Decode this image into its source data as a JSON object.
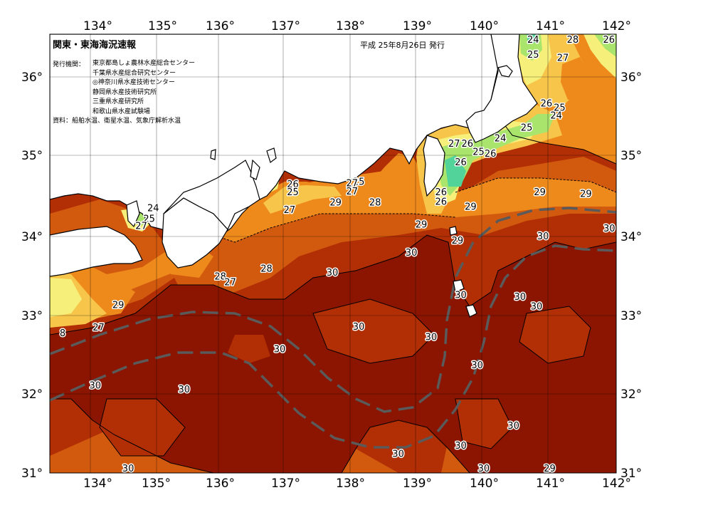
{
  "header": {
    "title": "関東・東海海況速報",
    "issue": "平成 25年8月26日 発行",
    "agency_label": "発行機関：",
    "agencies": [
      "東京都島しょ農林水産総合センター",
      "千葉県水産総合研究センター",
      "◎神奈川県水産技術センター",
      "静岡県水産技術研究所",
      "三重県水産研究所",
      "和歌山県水産試験場"
    ],
    "source": "資料：船舶水温、衛星水温、気象庁解析水温"
  },
  "map": {
    "lon_ticks": [
      "134°",
      "135°",
      "136°",
      "137°",
      "138°",
      "139°",
      "140°",
      "141°",
      "142°"
    ],
    "lat_ticks": [
      "36°",
      "35°",
      "34°",
      "33°",
      "32°",
      "31°"
    ],
    "lon_range": [
      133.5,
      142
    ],
    "lat_range": [
      31,
      36.5
    ],
    "colors": {
      "t30": "#8b1500",
      "t29": "#b22e05",
      "t28": "#d25a0f",
      "t27": "#ee8a1c",
      "t26": "#f7c54a",
      "t25": "#f6ef7a",
      "t24": "#a9e46c",
      "t23": "#52d39a",
      "land": "#ffffff",
      "kuroshio": "#5a5a5a"
    },
    "isotherm_labels": [
      {
        "text": "28",
        "lon": 141.25,
        "lat": 36.45
      },
      {
        "text": "26",
        "lon": 141.8,
        "lat": 36.4
      },
      {
        "text": "24",
        "lon": 140.65,
        "lat": 36.4
      },
      {
        "text": "25",
        "lon": 140.65,
        "lat": 36.16
      },
      {
        "text": "27",
        "lon": 141.1,
        "lat": 36.12
      },
      {
        "text": "26",
        "lon": 140.85,
        "lat": 35.55
      },
      {
        "text": "25",
        "lon": 141.05,
        "lat": 35.5
      },
      {
        "text": "24",
        "lon": 141.0,
        "lat": 35.4
      },
      {
        "text": "25",
        "lon": 140.55,
        "lat": 35.25
      },
      {
        "text": "24",
        "lon": 140.15,
        "lat": 35.12
      },
      {
        "text": "27",
        "lon": 139.45,
        "lat": 35.05
      },
      {
        "text": "26",
        "lon": 139.65,
        "lat": 35.05
      },
      {
        "text": "25",
        "lon": 139.82,
        "lat": 34.95
      },
      {
        "text": "26",
        "lon": 140.0,
        "lat": 34.93
      },
      {
        "text": "26",
        "lon": 139.55,
        "lat": 34.82
      },
      {
        "text": "26",
        "lon": 137.0,
        "lat": 34.55
      },
      {
        "text": "25",
        "lon": 137.0,
        "lat": 34.45
      },
      {
        "text": "25",
        "lon": 138.0,
        "lat": 34.58
      },
      {
        "text": "27",
        "lon": 137.9,
        "lat": 34.56
      },
      {
        "text": "27",
        "lon": 137.9,
        "lat": 34.46
      },
      {
        "text": "26",
        "lon": 139.25,
        "lat": 34.45
      },
      {
        "text": "26",
        "lon": 139.25,
        "lat": 34.33
      },
      {
        "text": "29",
        "lon": 137.65,
        "lat": 34.32
      },
      {
        "text": "28",
        "lon": 138.25,
        "lat": 34.32
      },
      {
        "text": "29",
        "lon": 139.7,
        "lat": 34.27
      },
      {
        "text": "29",
        "lon": 140.75,
        "lat": 34.45
      },
      {
        "text": "29",
        "lon": 141.45,
        "lat": 34.43
      },
      {
        "text": "27",
        "lon": 136.95,
        "lat": 34.23
      },
      {
        "text": "24",
        "lon": 134.88,
        "lat": 34.25
      },
      {
        "text": "25",
        "lon": 134.82,
        "lat": 34.12
      },
      {
        "text": "27",
        "lon": 134.7,
        "lat": 34.03
      },
      {
        "text": "29",
        "lon": 138.95,
        "lat": 34.05
      },
      {
        "text": "29",
        "lon": 139.5,
        "lat": 33.85
      },
      {
        "text": "30",
        "lon": 140.8,
        "lat": 33.9
      },
      {
        "text": "30",
        "lon": 141.85,
        "lat": 34.0
      },
      {
        "text": "30",
        "lon": 138.8,
        "lat": 33.7
      },
      {
        "text": "28",
        "lon": 136.6,
        "lat": 33.5
      },
      {
        "text": "28",
        "lon": 135.9,
        "lat": 33.4
      },
      {
        "text": "27",
        "lon": 136.05,
        "lat": 33.33
      },
      {
        "text": "30",
        "lon": 137.6,
        "lat": 33.45
      },
      {
        "text": "30",
        "lon": 139.55,
        "lat": 33.17
      },
      {
        "text": "30",
        "lon": 140.45,
        "lat": 33.15
      },
      {
        "text": "30",
        "lon": 140.7,
        "lat": 33.03
      },
      {
        "text": "29",
        "lon": 134.35,
        "lat": 33.05
      },
      {
        "text": "27",
        "lon": 134.05,
        "lat": 32.77
      },
      {
        "text": "30",
        "lon": 138.0,
        "lat": 32.78
      },
      {
        "text": "30",
        "lon": 139.1,
        "lat": 32.65
      },
      {
        "text": "30",
        "lon": 136.8,
        "lat": 32.5
      },
      {
        "text": "30",
        "lon": 139.8,
        "lat": 32.3
      },
      {
        "text": "30",
        "lon": 134.0,
        "lat": 32.05
      },
      {
        "text": "30",
        "lon": 135.35,
        "lat": 32.0
      },
      {
        "text": "30",
        "lon": 140.35,
        "lat": 31.55
      },
      {
        "text": "30",
        "lon": 139.55,
        "lat": 31.3
      },
      {
        "text": "30",
        "lon": 138.6,
        "lat": 31.2
      },
      {
        "text": "30",
        "lon": 134.5,
        "lat": 30.7
      },
      {
        "text": "29",
        "lon": 140.9,
        "lat": 30.55
      },
      {
        "text": "30",
        "lon": 139.9,
        "lat": 30.45
      },
      {
        "text": "8",
        "lon": 133.55,
        "lat": 32.7
      }
    ]
  }
}
